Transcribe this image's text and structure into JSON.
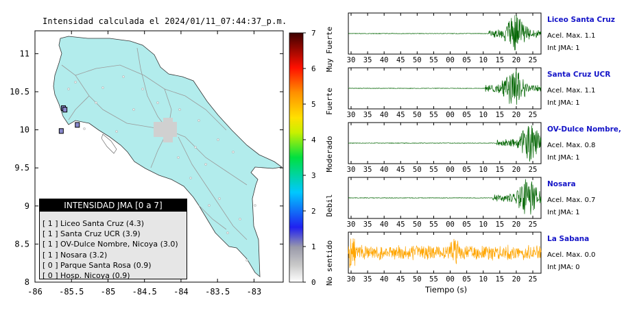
{
  "map": {
    "title": "Intensidad calculada el 2024/01/11_07:44:37_p.m.",
    "x_ticks": [
      "-86",
      "-85.5",
      "-85",
      "-84.5",
      "-84",
      "-83.5",
      "-83"
    ],
    "y_ticks": [
      "11",
      "10.5",
      "10",
      "9.5",
      "9",
      "8.5",
      "8"
    ],
    "land_color": "#b2ecec",
    "stations": [
      {
        "lon": -85.61,
        "lat": 10.28
      },
      {
        "lon": -85.59,
        "lat": 10.26
      },
      {
        "lon": -85.42,
        "lat": 10.06
      },
      {
        "lon": -85.64,
        "lat": 9.98
      }
    ]
  },
  "colorbar": {
    "ticks": [
      "0",
      "1",
      "2",
      "3",
      "4",
      "5",
      "6",
      "7"
    ],
    "labels": [
      "No sentido",
      "Debil",
      "Moderado",
      "Fuerte",
      "Muy Fuerte"
    ]
  },
  "legend": {
    "header": "INTENSIDAD JMA [0 a 7]",
    "items": [
      {
        "level": "[ 1 ]",
        "text": "Liceo Santa Cruz (4.3)"
      },
      {
        "level": "[ 1 ]",
        "text": "Santa Cruz UCR (3.9)"
      },
      {
        "level": "[ 1 ]",
        "text": "OV-Dulce Nombre, Nicoya (3.0)"
      },
      {
        "level": "[ 1 ]",
        "text": "Nosara (3.2)"
      },
      {
        "level": "[ 0 ]",
        "text": "Parque Santa Rosa (0.9)"
      },
      {
        "level": "[ 0 ]",
        "text": "Hosp. Nicoya (0.9)"
      }
    ]
  },
  "waveforms": {
    "x_ticks": [
      "30",
      "35",
      "40",
      "45",
      "50",
      "55",
      "00",
      "05",
      "10",
      "15",
      "20",
      "25"
    ],
    "xlabel": "Tiempo (s)",
    "stations": [
      {
        "name": "Liceo Santa Cruz",
        "acc": "Acel. Max. 1.1",
        "jma": "Int JMA: 1",
        "color": "#006400",
        "onset": 0.73,
        "peak": 0.87
      },
      {
        "name": "Santa Cruz UCR",
        "acc": "Acel. Max. 1.1",
        "jma": "Int JMA: 1",
        "color": "#006400",
        "onset": 0.71,
        "peak": 0.86
      },
      {
        "name": "OV-Dulce Nombre, Nicoya",
        "acc": "Acel. Max. 0.8",
        "jma": "Int JMA: 1",
        "color": "#006400",
        "onset": 0.77,
        "peak": 0.94
      },
      {
        "name": "Nosara",
        "acc": "Acel. Max. 0.7",
        "jma": "Int JMA: 1",
        "color": "#006400",
        "onset": 0.75,
        "peak": 0.93
      },
      {
        "name": "La Sabana",
        "acc": "Acel. Max. 0.0",
        "jma": "Int JMA: 0",
        "color": "#ffa500",
        "onset": 0.0,
        "peak": 0.55
      }
    ]
  }
}
